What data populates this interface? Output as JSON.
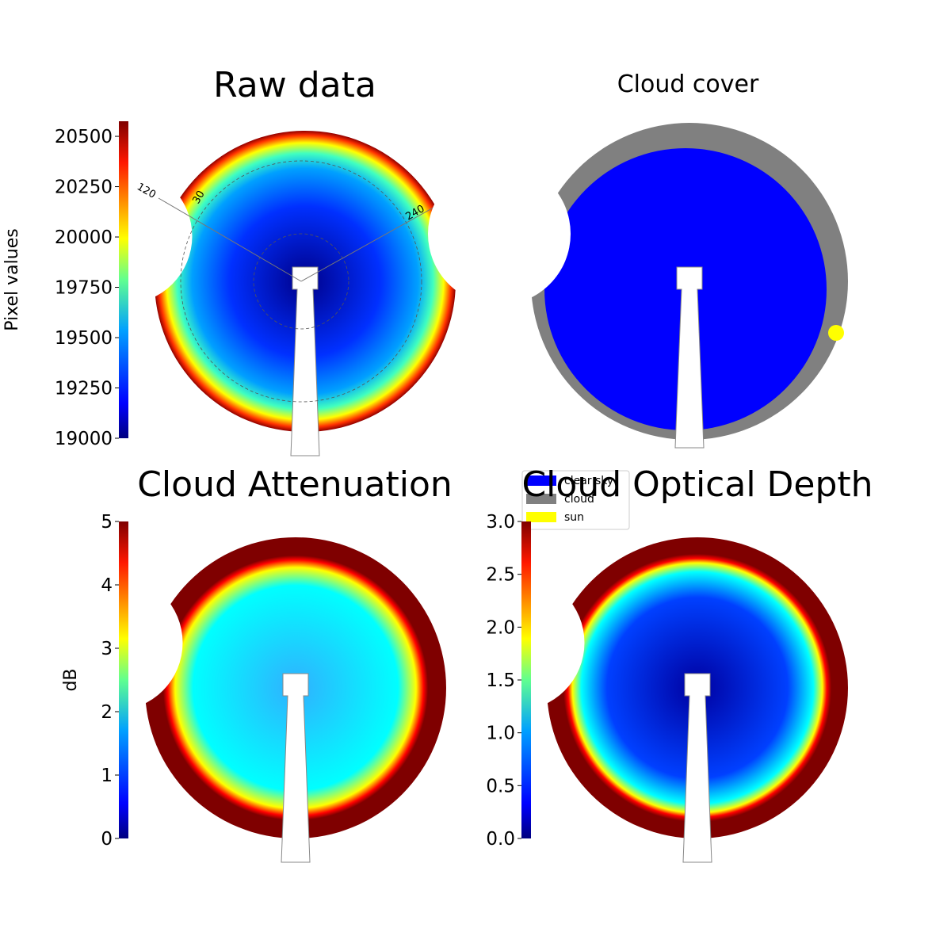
{
  "chart_data": [
    {
      "type": "image",
      "title": "Raw data",
      "colormap": "jet",
      "colorbar": {
        "label": "Pixel values",
        "ylim": [
          19000,
          20575
        ],
        "yticks": [
          19000,
          19250,
          19500,
          19750,
          20000,
          20250,
          20500
        ]
      },
      "annotations": [
        "120",
        "30",
        "240"
      ]
    },
    {
      "type": "classes",
      "title": "Cloud cover",
      "legend": [
        {
          "name": "clear sky",
          "color": "#0000ff"
        },
        {
          "name": "cloud",
          "color": "#808080"
        },
        {
          "name": "sun",
          "color": "#ffff00"
        }
      ]
    },
    {
      "type": "image",
      "title": "Cloud Attenuation",
      "colormap": "jet",
      "colorbar": {
        "label": "dB",
        "ylim": [
          0,
          5
        ],
        "yticks": [
          0,
          1,
          2,
          3,
          4,
          5
        ]
      }
    },
    {
      "type": "image",
      "title": "Cloud Optical Depth",
      "colormap": "jet",
      "colorbar": {
        "ylim": [
          0,
          3
        ],
        "yticks": [
          {
            "value": 0,
            "label": "0.0"
          },
          {
            "value": 0.5,
            "label": "0.5"
          },
          {
            "value": 1,
            "label": "1.0"
          },
          {
            "value": 1.5,
            "label": "1.5"
          },
          {
            "value": 2,
            "label": "2.0"
          },
          {
            "value": 2.5,
            "label": "2.5"
          },
          {
            "value": 3,
            "label": "3.0"
          }
        ]
      }
    }
  ]
}
